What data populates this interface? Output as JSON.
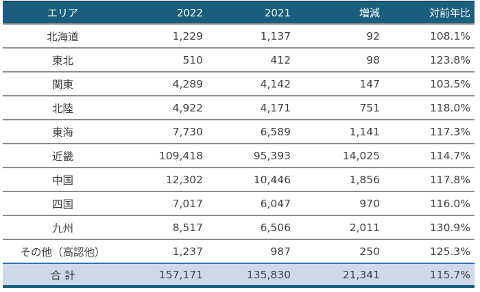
{
  "table": {
    "columns": {
      "area": "エリア",
      "y2022": "2022",
      "y2021": "2021",
      "diff": "増減",
      "yoy": "対前年比"
    },
    "rows": [
      {
        "area": "北海道",
        "y2022": "1,229",
        "y2021": "1,137",
        "diff": "92",
        "yoy": "108.1%"
      },
      {
        "area": "東北",
        "y2022": "510",
        "y2021": "412",
        "diff": "98",
        "yoy": "123.8%"
      },
      {
        "area": "関東",
        "y2022": "4,289",
        "y2021": "4,142",
        "diff": "147",
        "yoy": "103.5%"
      },
      {
        "area": "北陸",
        "y2022": "4,922",
        "y2021": "4,171",
        "diff": "751",
        "yoy": "118.0%"
      },
      {
        "area": "東海",
        "y2022": "7,730",
        "y2021": "6,589",
        "diff": "1,141",
        "yoy": "117.3%"
      },
      {
        "area": "近畿",
        "y2022": "109,418",
        "y2021": "95,393",
        "diff": "14,025",
        "yoy": "114.7%"
      },
      {
        "area": "中国",
        "y2022": "12,302",
        "y2021": "10,446",
        "diff": "1,856",
        "yoy": "117.8%"
      },
      {
        "area": "四国",
        "y2022": "7,017",
        "y2021": "6,047",
        "diff": "970",
        "yoy": "116.0%"
      },
      {
        "area": "九州",
        "y2022": "8,517",
        "y2021": "6,506",
        "diff": "2,011",
        "yoy": "130.9%"
      },
      {
        "area": "その他（高認他）",
        "y2022": "1,237",
        "y2021": "987",
        "diff": "250",
        "yoy": "125.3%"
      }
    ],
    "total": {
      "area": "合 計",
      "y2022": "157,171",
      "y2021": "135,830",
      "diff": "21,341",
      "yoy": "115.7%"
    }
  },
  "colors": {
    "header_bg": "#1a5e7f",
    "header_text": "#ffffff",
    "header_top_border": "#134c66",
    "row_divider": "#8c8c8c",
    "cell_text": "#3f3f3f",
    "total_bg": "#cedaea",
    "total_top_border": "#2e75b6",
    "table_bottom_border": "#15607c"
  }
}
